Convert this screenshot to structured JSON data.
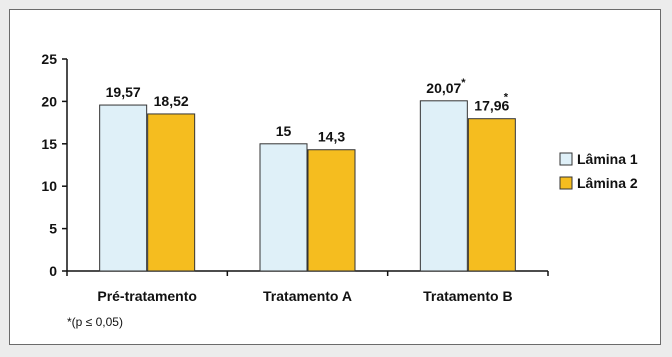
{
  "chart_data": {
    "type": "bar",
    "categories": [
      "Pré-tratamento",
      "Tratamento A",
      "Tratamento B"
    ],
    "series": [
      {
        "name": "Lâmina 1",
        "values": [
          19.57,
          15,
          20.07
        ],
        "labels": [
          "19,57",
          "15",
          "20,07"
        ],
        "color": "#dff0f8"
      },
      {
        "name": "Lâmina 2",
        "values": [
          18.52,
          14.3,
          17.96
        ],
        "labels": [
          "18,52",
          "14,3",
          "17,96"
        ],
        "color": "#f5bd1f"
      }
    ],
    "markers": [
      {
        "series": 0,
        "category": 2,
        "text": "*"
      },
      {
        "series": 1,
        "category": 2,
        "text": "*"
      }
    ],
    "yticks": [
      "0",
      "5",
      "10",
      "15",
      "20",
      "25"
    ],
    "ylim": [
      0,
      25
    ],
    "grid": false,
    "legend": "right",
    "footnote": "*(p ≤ 0,05)"
  }
}
